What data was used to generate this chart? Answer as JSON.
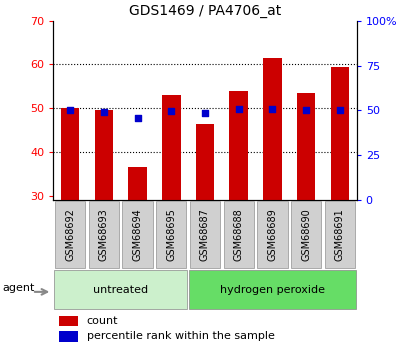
{
  "title": "GDS1469 / PA4706_at",
  "samples": [
    "GSM68692",
    "GSM68693",
    "GSM68694",
    "GSM68695",
    "GSM68687",
    "GSM68688",
    "GSM68689",
    "GSM68690",
    "GSM68691"
  ],
  "counts": [
    50.0,
    49.5,
    36.5,
    53.0,
    46.5,
    54.0,
    61.5,
    53.5,
    59.5
  ],
  "percentile_ranks": [
    50.0,
    49.0,
    45.5,
    49.5,
    48.5,
    51.0,
    51.0,
    50.5,
    50.5
  ],
  "groups": [
    "untreated",
    "untreated",
    "untreated",
    "untreated",
    "hydrogen peroxide",
    "hydrogen peroxide",
    "hydrogen peroxide",
    "hydrogen peroxide",
    "hydrogen peroxide"
  ],
  "group_colors": {
    "untreated": "#ccf0cc",
    "hydrogen peroxide": "#66dd66"
  },
  "bar_color": "#cc0000",
  "dot_color": "#0000cc",
  "ylim_left": [
    29,
    70
  ],
  "ylim_right": [
    0,
    100
  ],
  "yticks_left": [
    30,
    40,
    50,
    60,
    70
  ],
  "yticks_right": [
    0,
    25,
    50,
    75,
    100
  ],
  "ytick_labels_right": [
    "0",
    "25",
    "50",
    "75",
    "100%"
  ],
  "bar_bottom": 29,
  "grid_lines": [
    40,
    50,
    60
  ],
  "agent_label": "agent",
  "legend_count_label": "count",
  "legend_pct_label": "percentile rank within the sample",
  "tick_box_color": "#d0d0d0",
  "tick_box_border": "#aaaaaa"
}
